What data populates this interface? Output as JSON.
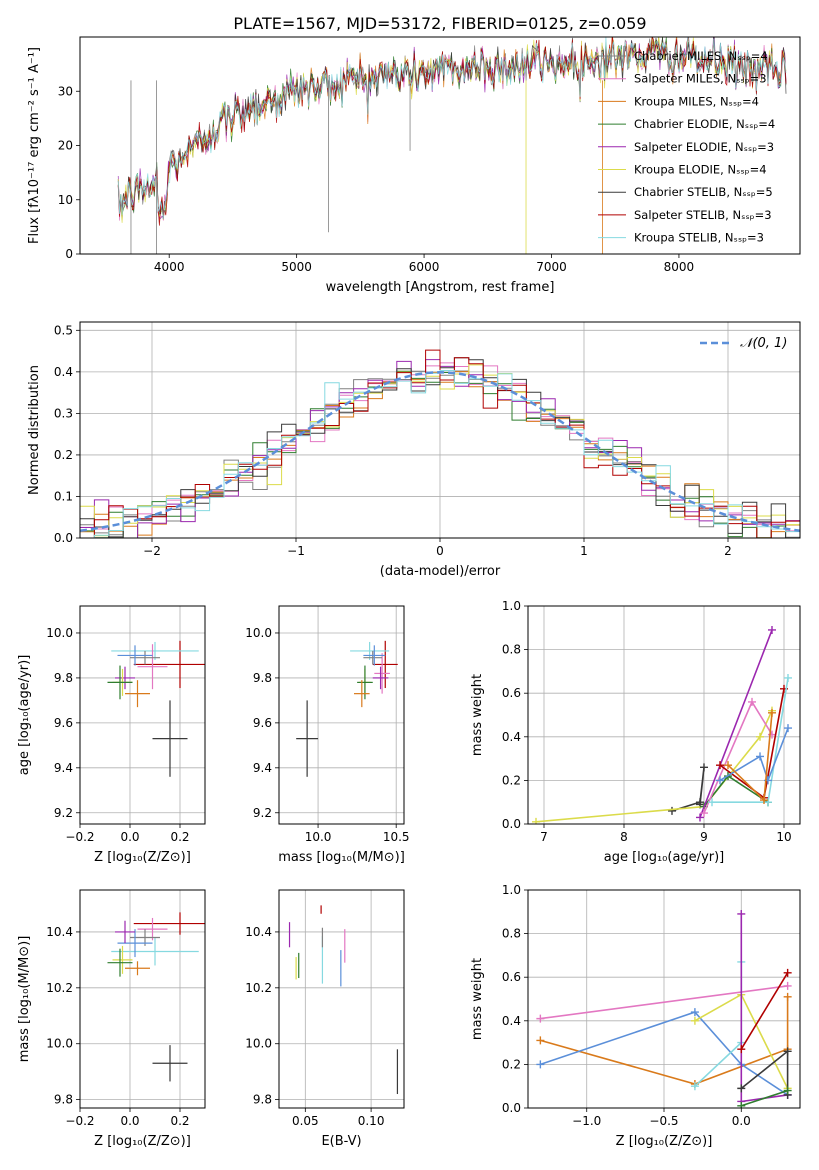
{
  "figure_title": "PLATE=1567, MJD=53172, FIBERID=0125, z=0.059",
  "chart_data": [
    {
      "id": "spectrum",
      "type": "line",
      "xlabel": "wavelength [Angstrom, rest frame]",
      "ylabel": "Flux [fλ10⁻¹⁷ erg cm⁻² s⁻¹ A⁻¹]",
      "xlim": [
        3300,
        8950
      ],
      "ylim": [
        0,
        40
      ],
      "xticks": [
        4000,
        5000,
        6000,
        7000,
        8000
      ],
      "yticks": [
        0,
        10,
        20,
        30
      ],
      "grid": false,
      "legend_position": "upper right",
      "series": [
        {
          "name": "Chabrier MILES, Nₛₛₚ=4",
          "color": "#808080"
        },
        {
          "name": "Salpeter MILES, Nₛₛₚ=3",
          "color": "#e377c2"
        },
        {
          "name": "Kroupa MILES, Nₛₛₚ=4",
          "color": "#d97a1b"
        },
        {
          "name": "Chabrier ELODIE, Nₛₛₚ=4",
          "color": "#2f7d2f"
        },
        {
          "name": "Salpeter ELODIE, Nₛₛₚ=3",
          "color": "#9b27af"
        },
        {
          "name": "Kroupa ELODIE, Nₛₛₚ=4",
          "color": "#dbdb4a"
        },
        {
          "name": "Chabrier STELIB, Nₛₛₚ=5",
          "color": "#3a3a3a"
        },
        {
          "name": "Salpeter STELIB, Nₛₛₚ=3",
          "color": "#b00000"
        },
        {
          "name": "Kroupa STELIB, Nₛₛₚ=3",
          "color": "#86d9e0"
        }
      ],
      "continuum": {
        "x": [
          3600,
          3700,
          3900,
          4000,
          4200,
          4400,
          4600,
          4800,
          5000,
          5200,
          5400,
          5600,
          5800,
          6000,
          6200,
          6400,
          6600,
          6800,
          7000,
          7200,
          7400,
          7600,
          7800,
          8000,
          8200,
          8400,
          8600,
          8800
        ],
        "y": [
          9,
          11,
          13,
          16,
          20,
          24,
          27,
          28.5,
          30,
          31,
          32,
          32.5,
          33,
          33.5,
          34,
          34.5,
          34.5,
          35,
          35,
          35.5,
          36,
          36.5,
          37,
          36.5,
          35.5,
          35,
          34,
          33
        ]
      }
    },
    {
      "id": "residuals",
      "type": "histogram",
      "xlabel": "(data-model)/error",
      "ylabel": "Normed distribution",
      "xlim": [
        -2.5,
        2.5
      ],
      "ylim": [
        0,
        0.52
      ],
      "xticks": [
        -2,
        -1,
        0,
        1,
        2
      ],
      "yticks": [
        0.0,
        0.1,
        0.2,
        0.3,
        0.4,
        0.5
      ],
      "grid": true,
      "legend_position": "upper right",
      "reference_curve": {
        "name": "𝒩(0, 1)",
        "color": "#5b8fd9",
        "style": "dashed"
      },
      "bins": 50
    },
    {
      "id": "age_vs_z",
      "type": "scatter",
      "xlabel": "Z [log₁₀(Z/Z⊙)]",
      "ylabel": "age  [log₁₀(age/yr)]",
      "xlim": [
        -0.2,
        0.3
      ],
      "ylim": [
        9.15,
        10.12
      ],
      "xticks": [
        -0.2,
        0.0,
        0.2
      ],
      "yticks": [
        9.2,
        9.4,
        9.6,
        9.8,
        10.0
      ],
      "grid": true,
      "points": [
        {
          "color": "#b00000",
          "x": 0.2,
          "xerr": 0.37,
          "y": 9.86,
          "yerr": 0.21
        },
        {
          "color": "#86d9e0",
          "x": 0.1,
          "xerr": 0.35,
          "y": 9.92,
          "yerr": 0.08
        },
        {
          "color": "#e377c2",
          "x": 0.09,
          "xerr": 0.12,
          "y": 9.85,
          "yerr": 0.2
        },
        {
          "color": "#808080",
          "x": 0.06,
          "xerr": 0.12,
          "y": 9.89,
          "yerr": 0.06
        },
        {
          "color": "#5b8fd9",
          "x": 0.02,
          "xerr": 0.14,
          "y": 9.9,
          "yerr": 0.09
        },
        {
          "color": "#9b27af",
          "x": -0.02,
          "xerr": 0.08,
          "y": 9.8,
          "yerr": 0.1
        },
        {
          "color": "#dbdb4a",
          "x": -0.03,
          "xerr": 0.08,
          "y": 9.78,
          "yerr": 0.12
        },
        {
          "color": "#2f7d2f",
          "x": -0.04,
          "xerr": 0.1,
          "y": 9.78,
          "yerr": 0.15
        },
        {
          "color": "#d97a1b",
          "x": 0.03,
          "xerr": 0.1,
          "y": 9.73,
          "yerr": 0.12
        },
        {
          "color": "#3a3a3a",
          "x": 0.16,
          "xerr": 0.14,
          "y": 9.53,
          "yerr": 0.34
        }
      ]
    },
    {
      "id": "age_vs_mass",
      "type": "scatter",
      "xlabel": "mass [log₁₀(M/M⊙)]",
      "ylabel": "",
      "xlim": [
        9.75,
        10.55
      ],
      "ylim": [
        9.15,
        10.12
      ],
      "xticks": [
        10.0,
        10.5
      ],
      "yticks": [
        9.2,
        9.4,
        9.6,
        9.8,
        10.0
      ],
      "grid": true,
      "points": [
        {
          "color": "#b00000",
          "x": 10.43,
          "xerr": 0.16,
          "y": 9.86,
          "yerr": 0.21
        },
        {
          "color": "#86d9e0",
          "x": 10.33,
          "xerr": 0.25,
          "y": 9.92,
          "yerr": 0.08
        },
        {
          "color": "#e377c2",
          "x": 10.41,
          "xerr": 0.1,
          "y": 9.82,
          "yerr": 0.18
        },
        {
          "color": "#808080",
          "x": 10.35,
          "xerr": 0.12,
          "y": 9.89,
          "yerr": 0.06
        },
        {
          "color": "#5b8fd9",
          "x": 10.36,
          "xerr": 0.14,
          "y": 9.9,
          "yerr": 0.09
        },
        {
          "color": "#9b27af",
          "x": 10.4,
          "xerr": 0.1,
          "y": 9.8,
          "yerr": 0.1
        },
        {
          "color": "#dbdb4a",
          "x": 10.3,
          "xerr": 0.08,
          "y": 9.78,
          "yerr": 0.12
        },
        {
          "color": "#2f7d2f",
          "x": 10.3,
          "xerr": 0.1,
          "y": 9.78,
          "yerr": 0.15
        },
        {
          "color": "#d97a1b",
          "x": 10.28,
          "xerr": 0.1,
          "y": 9.73,
          "yerr": 0.12
        },
        {
          "color": "#3a3a3a",
          "x": 9.93,
          "xerr": 0.14,
          "y": 9.53,
          "yerr": 0.34
        }
      ]
    },
    {
      "id": "weight_vs_age",
      "type": "line",
      "xlabel": "age  [log₁₀(age/yr)]",
      "ylabel": "mass weight",
      "xlim": [
        6.8,
        10.2
      ],
      "ylim": [
        0,
        1
      ],
      "xticks": [
        7,
        8,
        9,
        10
      ],
      "yticks": [
        0.0,
        0.2,
        0.4,
        0.6,
        0.8,
        1.0
      ],
      "grid": true,
      "series": [
        {
          "color": "#3a3a3a",
          "x": [
            8.6,
            8.95,
            9.0,
            8.95
          ],
          "y": [
            0.06,
            0.1,
            0.26,
            0.09
          ]
        },
        {
          "color": "#dbdb4a",
          "x": [
            6.9,
            9.0,
            9.7,
            9.85
          ],
          "y": [
            0.01,
            0.08,
            0.4,
            0.52
          ]
        },
        {
          "color": "#2f7d2f",
          "x": [
            9.0,
            9.3,
            9.8
          ],
          "y": [
            0.08,
            0.22,
            0.1
          ]
        },
        {
          "color": "#9b27af",
          "x": [
            8.95,
            9.85
          ],
          "y": [
            0.03,
            0.89
          ]
        },
        {
          "color": "#e377c2",
          "x": [
            9.0,
            9.6,
            9.85
          ],
          "y": [
            0.05,
            0.56,
            0.41
          ]
        },
        {
          "color": "#b00000",
          "x": [
            9.2,
            9.75,
            10.0
          ],
          "y": [
            0.27,
            0.12,
            0.62
          ]
        },
        {
          "color": "#86d9e0",
          "x": [
            9.1,
            9.8,
            10.05
          ],
          "y": [
            0.1,
            0.1,
            0.67
          ]
        },
        {
          "color": "#5b8fd9",
          "x": [
            9.2,
            9.7,
            9.8,
            10.05
          ],
          "y": [
            0.2,
            0.31,
            0.2,
            0.44
          ]
        },
        {
          "color": "#d97a1b",
          "x": [
            9.3,
            9.75,
            9.85
          ],
          "y": [
            0.27,
            0.11,
            0.51
          ]
        }
      ]
    },
    {
      "id": "mass_vs_z",
      "type": "scatter",
      "xlabel": "Z [log₁₀(Z/Z⊙)]",
      "ylabel": "mass [log₁₀(M/M⊙)]",
      "xlim": [
        -0.2,
        0.3
      ],
      "ylim": [
        9.77,
        10.55
      ],
      "xticks": [
        -0.2,
        0.0,
        0.2
      ],
      "yticks": [
        9.8,
        10.0,
        10.2,
        10.4
      ],
      "grid": true,
      "points": [
        {
          "color": "#b00000",
          "x": 0.2,
          "xerr": 0.37,
          "y": 10.43,
          "yerr": 0.08
        },
        {
          "color": "#86d9e0",
          "x": 0.1,
          "xerr": 0.35,
          "y": 10.33,
          "yerr": 0.1
        },
        {
          "color": "#e377c2",
          "x": 0.09,
          "xerr": 0.12,
          "y": 10.41,
          "yerr": 0.08
        },
        {
          "color": "#808080",
          "x": 0.06,
          "xerr": 0.12,
          "y": 10.38,
          "yerr": 0.06
        },
        {
          "color": "#5b8fd9",
          "x": 0.02,
          "xerr": 0.14,
          "y": 10.36,
          "yerr": 0.1
        },
        {
          "color": "#9b27af",
          "x": -0.02,
          "xerr": 0.08,
          "y": 10.4,
          "yerr": 0.08
        },
        {
          "color": "#dbdb4a",
          "x": -0.03,
          "xerr": 0.08,
          "y": 10.3,
          "yerr": 0.1
        },
        {
          "color": "#2f7d2f",
          "x": -0.04,
          "xerr": 0.1,
          "y": 10.29,
          "yerr": 0.1
        },
        {
          "color": "#d97a1b",
          "x": 0.03,
          "xerr": 0.1,
          "y": 10.27,
          "yerr": 0.05
        },
        {
          "color": "#3a3a3a",
          "x": 0.16,
          "xerr": 0.14,
          "y": 9.93,
          "yerr": 0.13
        }
      ]
    },
    {
      "id": "mass_vs_ebv",
      "type": "scatter",
      "xlabel": "E(B-V)",
      "ylabel": "",
      "xlim": [
        0.03,
        0.125
      ],
      "ylim": [
        9.77,
        10.55
      ],
      "xticks": [
        0.05,
        0.1
      ],
      "yticks": [
        9.8,
        10.0,
        10.2,
        10.4
      ],
      "grid": true,
      "points": [
        {
          "color": "#9b27af",
          "x": 0.038,
          "y": 10.39,
          "yerr": 0.09
        },
        {
          "color": "#dbdb4a",
          "x": 0.043,
          "y": 10.27,
          "yerr": 0.08
        },
        {
          "color": "#2f7d2f",
          "x": 0.045,
          "y": 10.28,
          "yerr": 0.09
        },
        {
          "color": "#b00000",
          "x": 0.062,
          "y": 10.48,
          "yerr": 0.03
        },
        {
          "color": "#86d9e0",
          "x": 0.063,
          "y": 10.3,
          "yerr": 0.17
        },
        {
          "color": "#808080",
          "x": 0.063,
          "y": 10.38,
          "yerr": 0.07
        },
        {
          "color": "#5b8fd9",
          "x": 0.077,
          "y": 10.27,
          "yerr": 0.13
        },
        {
          "color": "#e377c2",
          "x": 0.08,
          "y": 10.35,
          "yerr": 0.12
        },
        {
          "color": "#3a3a3a",
          "x": 0.12,
          "y": 9.9,
          "yerr": 0.16
        }
      ]
    },
    {
      "id": "weight_vs_z",
      "type": "line",
      "xlabel": "Z [log₁₀(Z/Z⊙)]",
      "ylabel": "mass weight",
      "xlim": [
        -1.38,
        0.38
      ],
      "ylim": [
        0,
        1
      ],
      "xticks": [
        -1.0,
        -0.5,
        0.0
      ],
      "yticks": [
        0.0,
        0.2,
        0.4,
        0.6,
        0.8,
        1.0
      ],
      "grid": true,
      "series": [
        {
          "color": "#e377c2",
          "x": [
            -1.3,
            0.3
          ],
          "y": [
            0.41,
            0.56
          ]
        },
        {
          "color": "#d97a1b",
          "x": [
            -1.3,
            -0.3,
            0.3,
            0.3
          ],
          "y": [
            0.31,
            0.11,
            0.27,
            0.51
          ]
        },
        {
          "color": "#5b8fd9",
          "x": [
            -1.3,
            -0.3,
            0.0,
            0.3
          ],
          "y": [
            0.2,
            0.44,
            0.2,
            0.06
          ]
        },
        {
          "color": "#86d9e0",
          "x": [
            -0.3,
            0.0,
            0.0
          ],
          "y": [
            0.1,
            0.3,
            0.67
          ]
        },
        {
          "color": "#dbdb4a",
          "x": [
            -0.3,
            0.0,
            0.3
          ],
          "y": [
            0.4,
            0.52,
            0.09
          ]
        },
        {
          "color": "#9b27af",
          "x": [
            0.0,
            0.0,
            0.3
          ],
          "y": [
            0.89,
            0.03,
            0.06
          ]
        },
        {
          "color": "#b00000",
          "x": [
            0.0,
            0.3
          ],
          "y": [
            0.27,
            0.62
          ]
        },
        {
          "color": "#3a3a3a",
          "x": [
            0.0,
            0.3,
            0.3
          ],
          "y": [
            0.09,
            0.26,
            0.06
          ]
        },
        {
          "color": "#2f7d2f",
          "x": [
            0.0,
            0.3
          ],
          "y": [
            0.01,
            0.08
          ]
        }
      ]
    }
  ]
}
